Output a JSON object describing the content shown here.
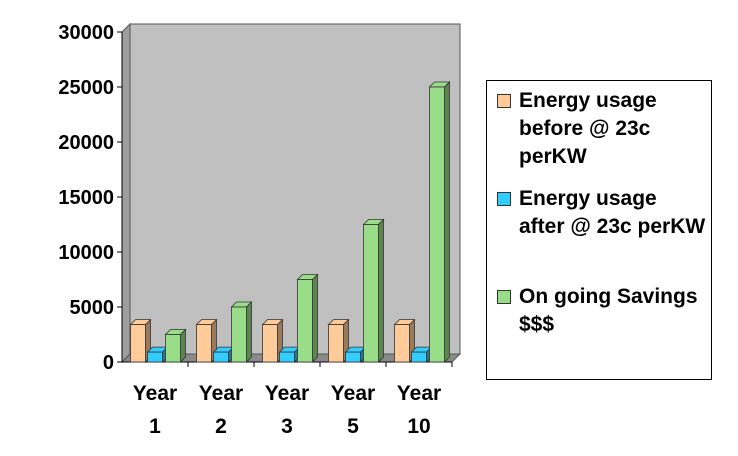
{
  "chart_data": {
    "type": "bar",
    "title": "",
    "xlabel": "",
    "ylabel": "",
    "ylim": [
      0,
      30000
    ],
    "yticks": [
      "0",
      "5000",
      "10000",
      "15000",
      "20000",
      "25000",
      "30000"
    ],
    "categories": [
      [
        "Year",
        "1"
      ],
      [
        "Year",
        "2"
      ],
      [
        "Year",
        "3"
      ],
      [
        "Year",
        "5"
      ],
      [
        "Year",
        "10"
      ]
    ],
    "series": [
      {
        "name": "Energy usage before @ 23c perKW",
        "values": [
          3400,
          3400,
          3400,
          3400,
          3400
        ],
        "color": "#FFCC99"
      },
      {
        "name": "Energy usage after @ 23c perKW",
        "values": [
          900,
          900,
          900,
          900,
          900
        ],
        "color": "#33CCFF"
      },
      {
        "name": "On going Savings $$$",
        "values": [
          2500,
          5000,
          7500,
          12500,
          25000
        ],
        "color": "#99DD88"
      }
    ],
    "grid": false,
    "style": "3d-clustered-column",
    "background_color": "#C0C0C0",
    "legend_position": "right"
  }
}
